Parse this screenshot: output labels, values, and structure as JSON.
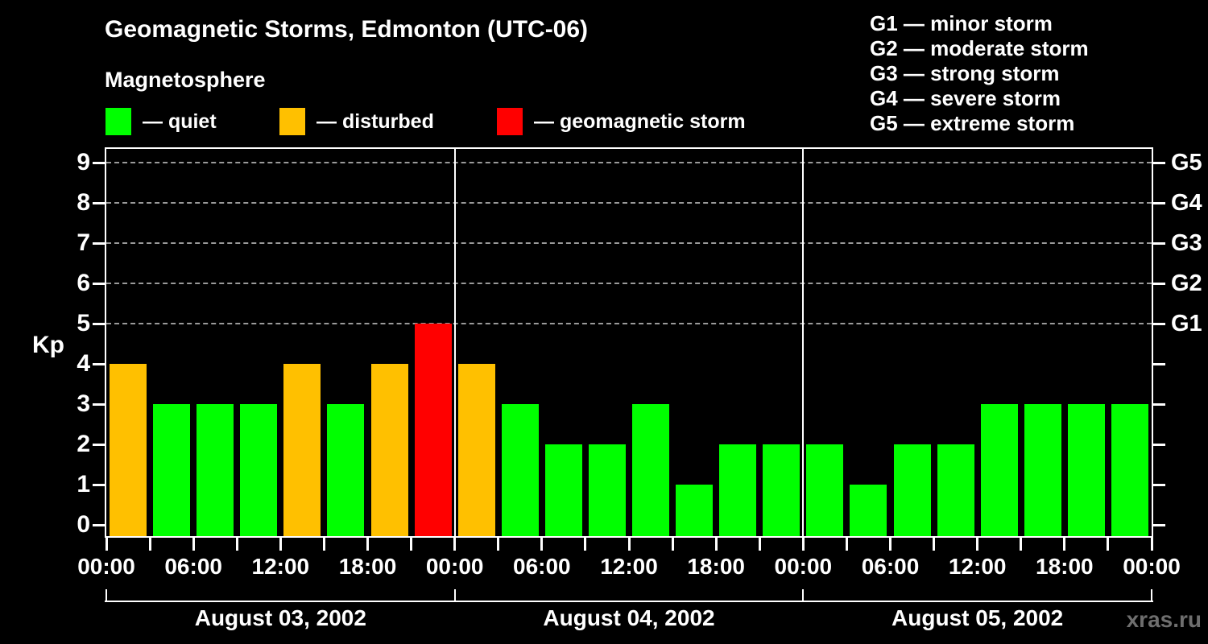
{
  "title": "Geomagnetic Storms, Edmonton (UTC-06)",
  "subtitle": "Magnetosphere",
  "kp_axis_label": "Kp",
  "watermark": "xras.ru",
  "colors": {
    "background": "#000000",
    "quiet": "#00ff00",
    "disturbed": "#ffc000",
    "storm": "#ff0000",
    "axis": "#ffffff",
    "grid": "#9a9a9a",
    "watermark_gray": "#6e6e6e"
  },
  "legend": {
    "items": [
      {
        "key": "quiet",
        "label": "— quiet"
      },
      {
        "key": "disturbed",
        "label": "— disturbed"
      },
      {
        "key": "storm",
        "label": "— geomagnetic storm"
      }
    ]
  },
  "g_scale_legend": [
    {
      "code": "G1",
      "text": "G1 — minor storm"
    },
    {
      "code": "G2",
      "text": "G2 — moderate storm"
    },
    {
      "code": "G3",
      "text": "G3 — strong storm"
    },
    {
      "code": "G4",
      "text": "G4 — severe storm"
    },
    {
      "code": "G5",
      "text": "G5 — extreme storm"
    }
  ],
  "chart_data": {
    "type": "bar",
    "title": "Geomagnetic Storms, Edmonton (UTC-06)",
    "subtitle": "Magnetosphere",
    "ylabel": "Kp",
    "ylim": [
      0,
      9
    ],
    "y_ticks": [
      0,
      1,
      2,
      3,
      4,
      5,
      6,
      7,
      8,
      9
    ],
    "gridlines_at": [
      5,
      6,
      7,
      8,
      9
    ],
    "grid_style": "dashed horizontal lines only at Kp 5-9",
    "right_axis": [
      {
        "kp": 5,
        "label": "G1"
      },
      {
        "kp": 6,
        "label": "G2"
      },
      {
        "kp": 7,
        "label": "G3"
      },
      {
        "kp": 8,
        "label": "G4"
      },
      {
        "kp": 9,
        "label": "G5"
      }
    ],
    "hours_per_bar": 3,
    "x_tick_every_hours": 3,
    "x_label_every_hours": 6,
    "x_tick_labels": [
      "00:00",
      "06:00",
      "12:00",
      "18:00",
      "00:00",
      "06:00",
      "12:00",
      "18:00",
      "00:00",
      "06:00",
      "12:00",
      "18:00",
      "00:00"
    ],
    "days": [
      {
        "date": "August 03, 2002",
        "values": [
          4,
          3,
          3,
          3,
          4,
          3,
          4,
          5
        ],
        "colors": [
          "disturbed",
          "quiet",
          "quiet",
          "quiet",
          "disturbed",
          "quiet",
          "disturbed",
          "storm"
        ]
      },
      {
        "date": "August 04, 2002",
        "values": [
          4,
          3,
          2,
          2,
          3,
          1,
          2,
          2
        ],
        "colors": [
          "disturbed",
          "quiet",
          "quiet",
          "quiet",
          "quiet",
          "quiet",
          "quiet",
          "quiet"
        ]
      },
      {
        "date": "August 05, 2002",
        "values": [
          2,
          1,
          2,
          2,
          3,
          3,
          3,
          3
        ],
        "colors": [
          "quiet",
          "quiet",
          "quiet",
          "quiet",
          "quiet",
          "quiet",
          "quiet",
          "quiet"
        ]
      }
    ],
    "color_rule": {
      "quiet_kp_max": 3,
      "disturbed_kp": 4,
      "storm_kp_min": 5
    }
  }
}
